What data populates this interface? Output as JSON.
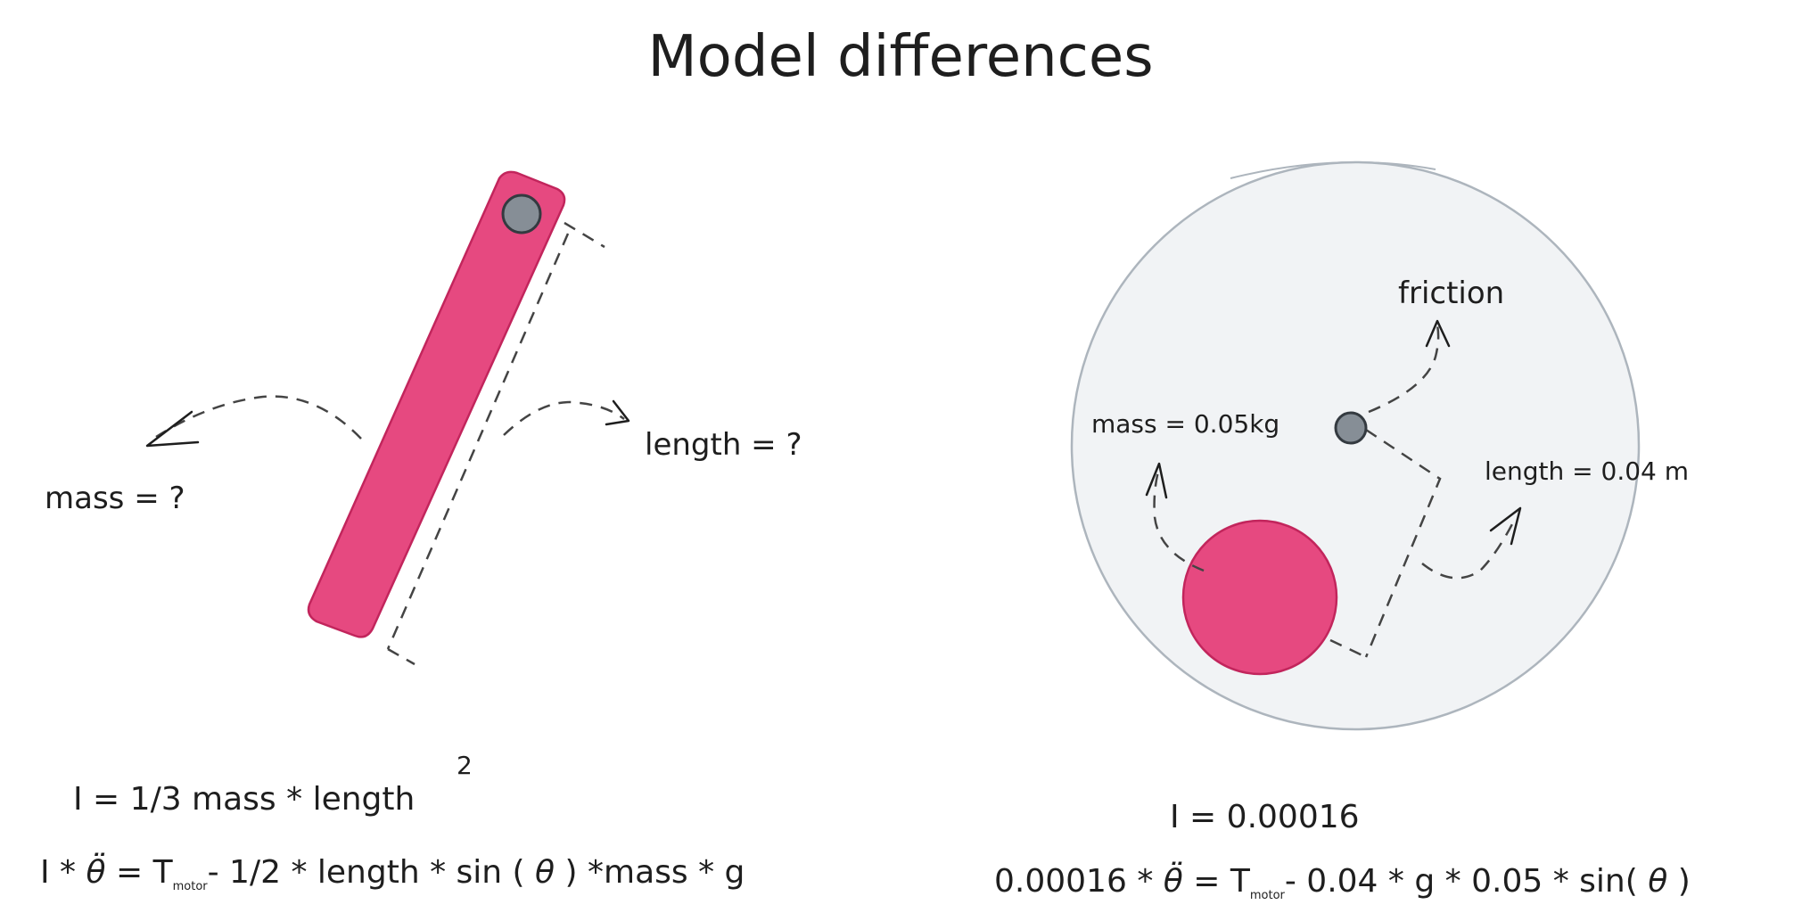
{
  "title": "Model differences",
  "left": {
    "mass_label": "mass = ?",
    "length_label": "length = ?",
    "eq1_main": "I = 1/3 mass * length",
    "eq1_sup": "2",
    "eq2_a": "I *",
    "eq2_theta_dd": "θ̈",
    "eq2_b": "= T",
    "eq2_sub": "motor",
    "eq2_c": "- 1/2 * length * sin (",
    "eq2_theta": "θ",
    "eq2_d": ") *mass * g"
  },
  "right": {
    "friction_label": "friction",
    "mass_label": "mass = 0.05kg",
    "length_label": "length = 0.04 m",
    "eq1": "I = 0.00016",
    "eq2_a": "0.00016 *",
    "eq2_theta_dd": "θ̈",
    "eq2_b": "= T",
    "eq2_sub": "motor",
    "eq2_c": "- 0.04 * g * 0.05 * sin(",
    "eq2_theta": "θ",
    "eq2_d": ")"
  },
  "colors": {
    "pink": "#e64980",
    "pink_stroke": "#c2255c",
    "gray_pivot": "#868e96",
    "circle_fill": "#f1f3f5",
    "circle_stroke": "#adb5bd"
  }
}
